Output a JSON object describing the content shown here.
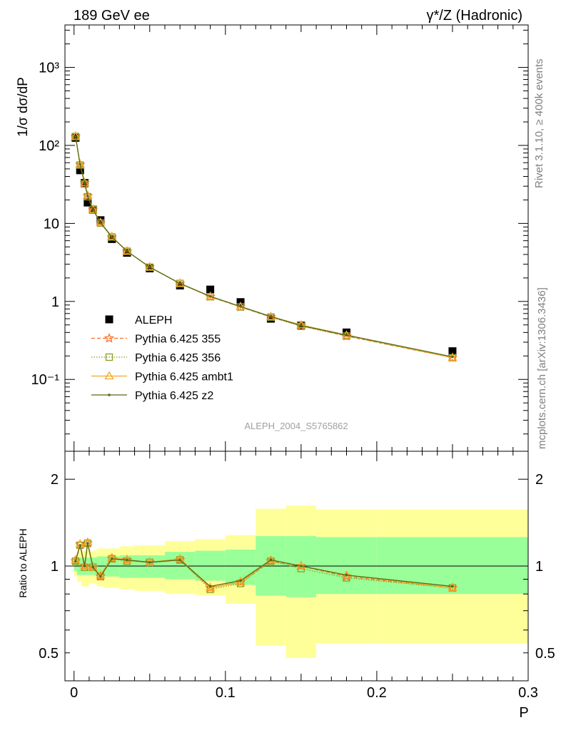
{
  "header": {
    "left": "189 GeV ee",
    "right": "γ*/Z (Hadronic)"
  },
  "side_labels": {
    "events": "Rivet 3.1.10, ≥ 400k events",
    "source": "mcplots.cern.ch [arXiv:1306.3436]"
  },
  "analysis_label": "ALEPH_2004_S5765862",
  "chart_data": [
    {
      "type": "scatter",
      "title": "",
      "ylabel": "1/σ  dσ/dP",
      "yscale": "log",
      "ylim": [
        0.012,
        3500
      ],
      "xlim": [
        -0.006,
        0.3
      ],
      "y_tick_labels": [
        "10⁻¹",
        "1",
        "10",
        "10²",
        "10³"
      ],
      "legend": "lower-left",
      "x": [
        0.001,
        0.004,
        0.007,
        0.009,
        0.0125,
        0.0175,
        0.025,
        0.035,
        0.05,
        0.07,
        0.09,
        0.11,
        0.13,
        0.15,
        0.18,
        0.25
      ],
      "series": [
        {
          "name": "ALEPH",
          "color": "#000000",
          "marker": "square",
          "values": [
            125,
            48,
            33,
            18.5,
            15,
            11,
            6.3,
            4.2,
            2.65,
            1.6,
            1.42,
            0.98,
            0.6,
            0.49,
            0.4,
            0.23
          ]
        },
        {
          "name": "Pythia 6.425 355",
          "color": "#ff6a21",
          "marker": "star",
          "line": "dashed",
          "values": [
            130,
            57,
            33,
            22.5,
            15,
            10.2,
            6.7,
            4.4,
            2.75,
            1.7,
            1.15,
            0.85,
            0.63,
            0.49,
            0.36,
            0.19
          ]
        },
        {
          "name": "Pythia 6.425 356",
          "color": "#8c9e21",
          "marker": "open-square",
          "line": "dotted",
          "values": [
            130,
            56,
            32,
            22,
            15,
            10.1,
            6.7,
            4.4,
            2.75,
            1.7,
            1.15,
            0.85,
            0.63,
            0.48,
            0.36,
            0.19
          ]
        },
        {
          "name": "Pythia 6.425 ambt1",
          "color": "#f5a623",
          "marker": "open-triangle",
          "line": "solid",
          "values": [
            131,
            57,
            33,
            23,
            15,
            10.3,
            6.8,
            4.4,
            2.76,
            1.7,
            1.16,
            0.86,
            0.64,
            0.5,
            0.37,
            0.19
          ]
        },
        {
          "name": "Pythia 6.425 z2",
          "color": "#556b16",
          "marker": "dot",
          "line": "solid",
          "values": [
            130,
            57,
            33,
            22.5,
            15,
            10.2,
            6.7,
            4.4,
            2.75,
            1.7,
            1.16,
            0.86,
            0.64,
            0.49,
            0.37,
            0.195
          ]
        }
      ]
    },
    {
      "type": "scatter",
      "title": "",
      "xlabel": "P",
      "ylabel": "Ratio to ALEPH",
      "yscale": "log",
      "ylim": [
        0.4,
        2.5
      ],
      "xlim": [
        -0.006,
        0.3
      ],
      "y_tick_labels": [
        "0.5",
        "1",
        "2"
      ],
      "x_tick_labels": [
        "0",
        "0.1",
        "0.2",
        "0.3"
      ],
      "x_ticks": [
        0,
        0.1,
        0.2,
        0.3
      ],
      "bands": {
        "edges": [
          0,
          0.002,
          0.005,
          0.0075,
          0.01,
          0.015,
          0.02,
          0.03,
          0.04,
          0.06,
          0.08,
          0.1,
          0.12,
          0.14,
          0.16,
          0.2,
          0.3
        ],
        "inner_color": "#99ff99",
        "outer_color": "#ffff99",
        "inner_lo": [
          0.96,
          0.93,
          0.93,
          0.93,
          0.93,
          0.92,
          0.92,
          0.91,
          0.91,
          0.9,
          0.89,
          0.86,
          0.79,
          0.78,
          0.8,
          0.8
        ],
        "inner_hi": [
          1.04,
          1.07,
          1.07,
          1.07,
          1.07,
          1.08,
          1.08,
          1.09,
          1.09,
          1.12,
          1.13,
          1.14,
          1.27,
          1.27,
          1.26,
          1.26
        ],
        "outer_lo": [
          0.92,
          0.88,
          0.85,
          0.85,
          0.87,
          0.85,
          0.84,
          0.83,
          0.82,
          0.8,
          0.79,
          0.74,
          0.53,
          0.48,
          0.54,
          0.54
        ],
        "outer_hi": [
          1.08,
          1.12,
          1.13,
          1.13,
          1.13,
          1.15,
          1.15,
          1.17,
          1.18,
          1.22,
          1.24,
          1.28,
          1.58,
          1.62,
          1.57,
          1.57
        ]
      },
      "x": [
        0.001,
        0.004,
        0.007,
        0.009,
        0.0125,
        0.0175,
        0.025,
        0.035,
        0.05,
        0.07,
        0.09,
        0.11,
        0.13,
        0.15,
        0.18,
        0.25
      ],
      "series": [
        {
          "name": "Pythia 6.425 355",
          "color": "#ff6a21",
          "marker": "star",
          "line": "dashed",
          "values": [
            1.04,
            1.19,
            1.0,
            1.2,
            0.99,
            0.92,
            1.06,
            1.05,
            1.03,
            1.05,
            0.84,
            0.88,
            1.04,
            1.0,
            0.92,
            0.84
          ]
        },
        {
          "name": "Pythia 6.425 356",
          "color": "#8c9e21",
          "marker": "open-square",
          "line": "dotted",
          "values": [
            1.04,
            1.18,
            0.99,
            1.2,
            0.99,
            0.92,
            1.06,
            1.04,
            1.03,
            1.05,
            0.83,
            0.87,
            1.04,
            0.98,
            0.91,
            0.84
          ]
        },
        {
          "name": "Pythia 6.425 ambt1",
          "color": "#f5a623",
          "marker": "open-triangle",
          "line": "solid",
          "values": [
            1.05,
            1.19,
            1.0,
            1.21,
            0.99,
            0.93,
            1.07,
            1.05,
            1.03,
            1.06,
            0.84,
            0.88,
            1.05,
            1.0,
            0.93,
            0.84
          ]
        },
        {
          "name": "Pythia 6.425 z2",
          "color": "#556b16",
          "marker": "dot",
          "line": "solid",
          "values": [
            1.04,
            1.18,
            1.0,
            1.2,
            0.99,
            0.92,
            1.06,
            1.05,
            1.03,
            1.05,
            0.85,
            0.89,
            1.05,
            1.0,
            0.93,
            0.85
          ]
        }
      ]
    }
  ]
}
